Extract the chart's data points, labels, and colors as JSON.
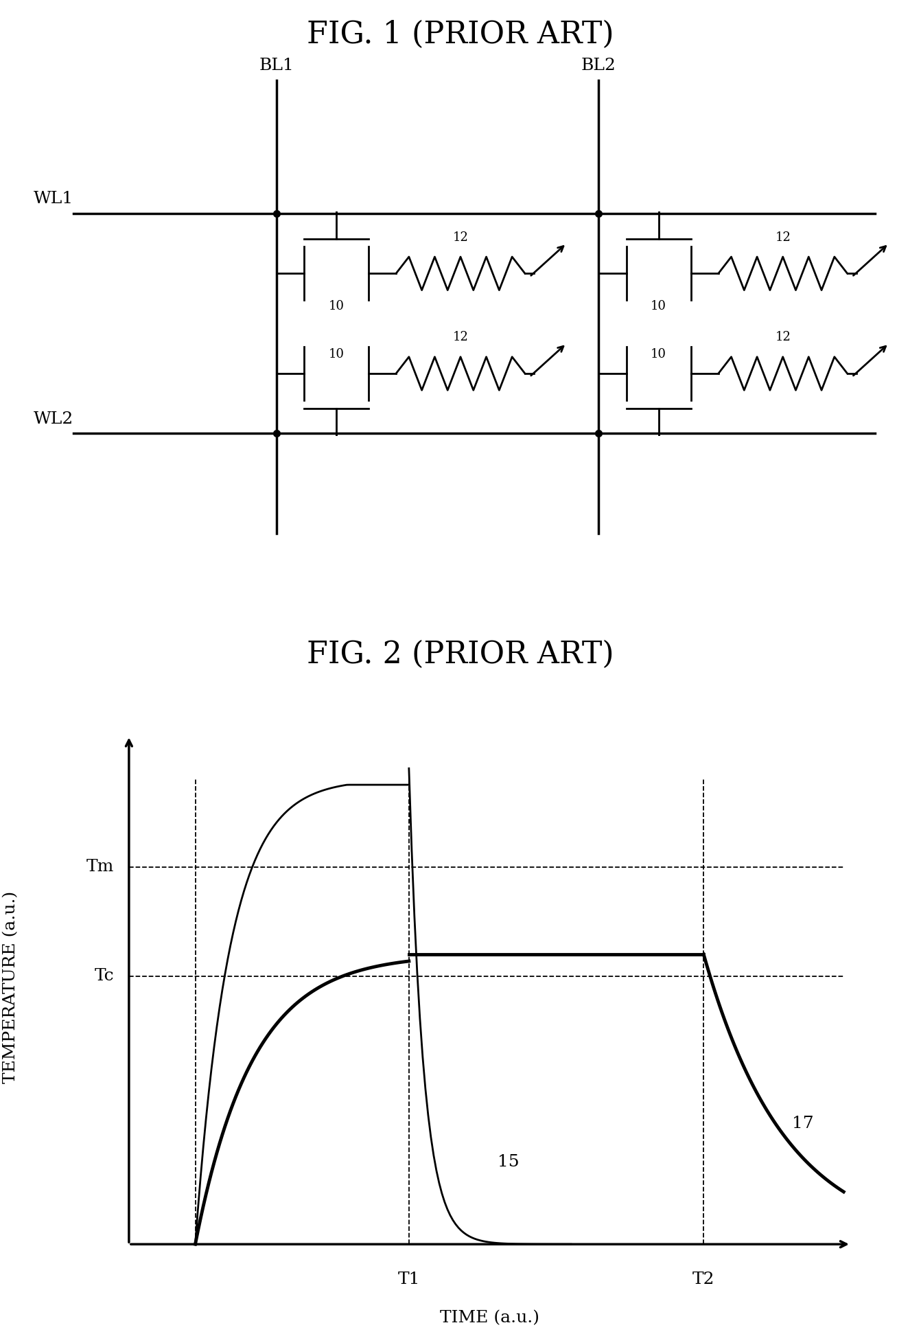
{
  "fig1_title": "FIG. 1 (PRIOR ART)",
  "fig2_title": "FIG. 2 (PRIOR ART)",
  "fig2_xlabel": "TIME (a.u.)",
  "fig2_ylabel": "TEMPERATURE (a.u.)",
  "Tm_label": "Tm",
  "Tc_label": "Tc",
  "T1_label": "T1",
  "T2_label": "T2",
  "label_15": "15",
  "label_17": "17",
  "bg_color": "#ffffff",
  "line_color": "#000000",
  "title_fontsize": 32,
  "axis_label_fontsize": 18,
  "tick_label_fontsize": 18,
  "circuit_label_fontsize": 18,
  "curve_label_fontsize": 18
}
